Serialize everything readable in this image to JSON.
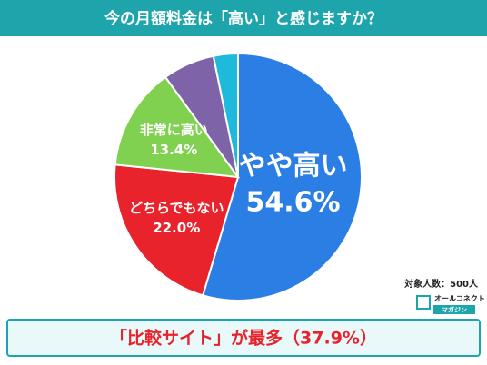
{
  "chart_data": {
    "type": "pie",
    "title": "今の月額料金は「高い」と感じますか？",
    "categories": [
      "やや高い",
      "どちらでもない",
      "非常に高い",
      null,
      null
    ],
    "values": [
      54.6,
      22.0,
      13.4,
      6.8,
      3.2
    ],
    "value_labels": [
      "54.6%",
      "22.0%",
      "13.4%",
      null,
      null
    ],
    "colors": [
      "#2b7ee3",
      "#e8232b",
      "#80d150",
      "#7e63a9",
      "#1fb9dc"
    ],
    "note": "対象人数：500人",
    "logo": [
      "オールコネクト",
      "マガジン"
    ],
    "annotation": "「比較サイト」が最多（37.9%）"
  }
}
